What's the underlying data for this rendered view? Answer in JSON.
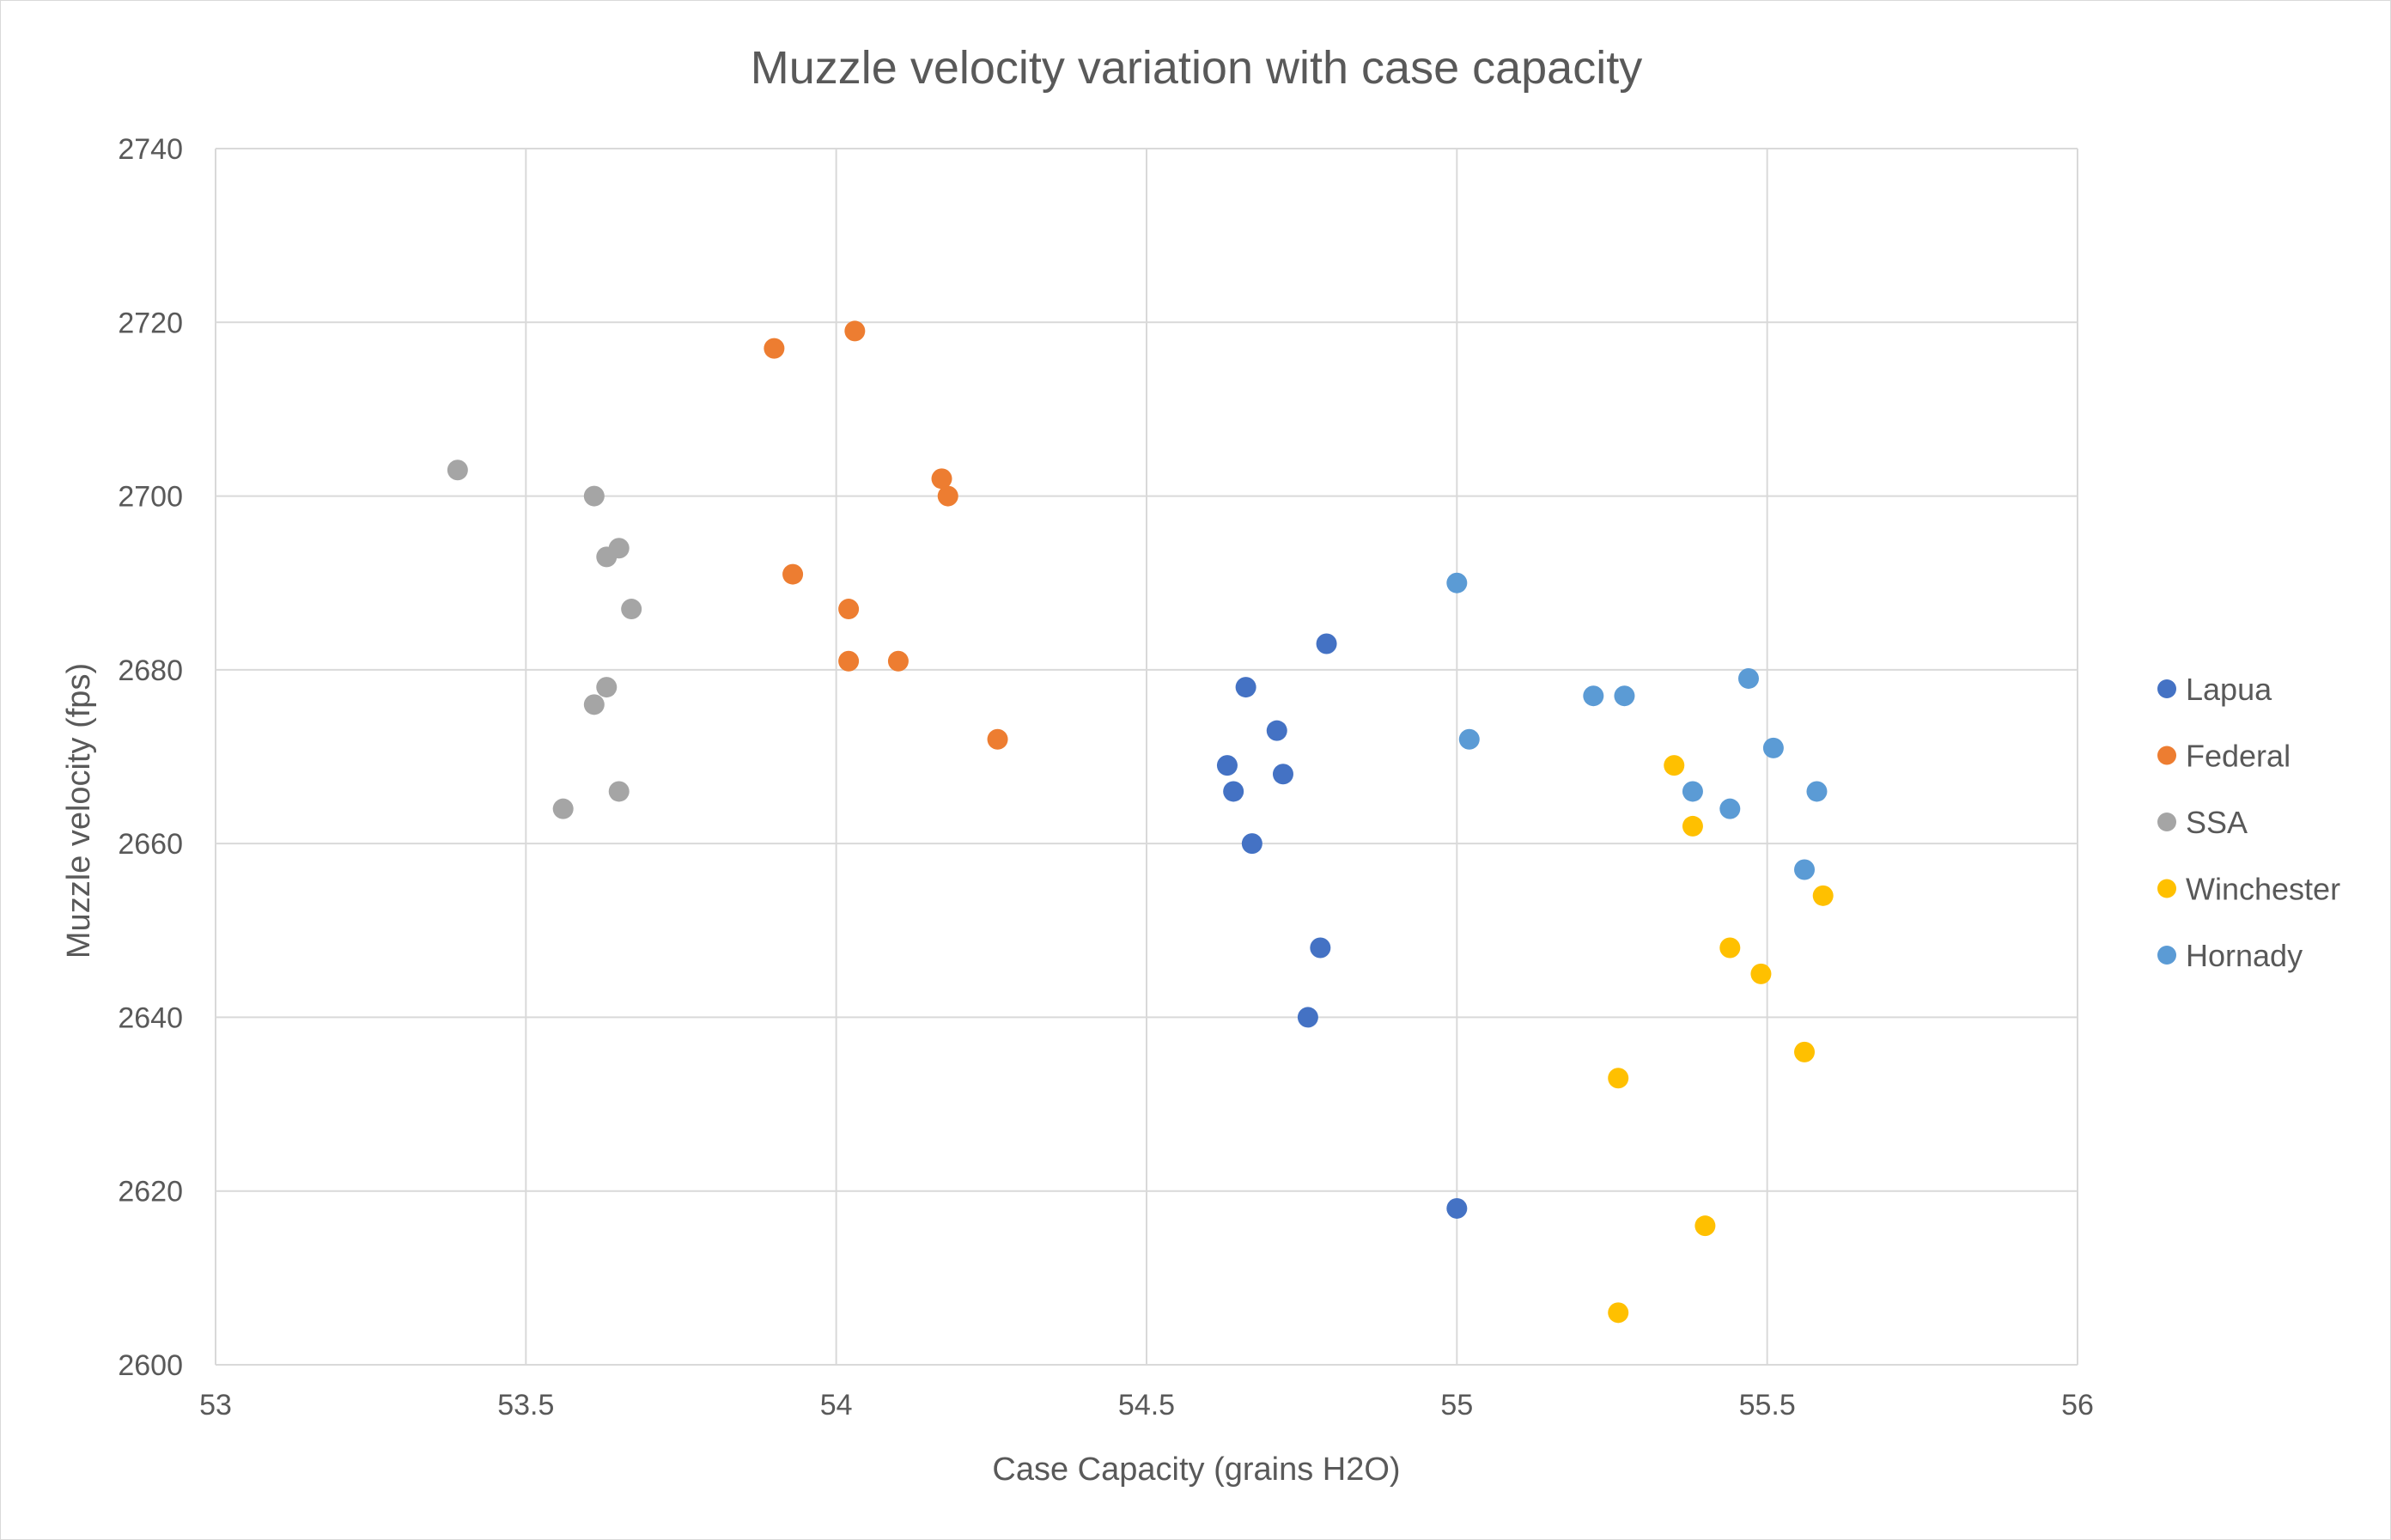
{
  "chart_data": {
    "type": "scatter",
    "title": "Muzzle velocity variation with case capacity",
    "xlabel": "Case Capacity (grains H2O)",
    "ylabel": "Muzzle velocity (fps)",
    "xlim": [
      53,
      56
    ],
    "ylim": [
      2600,
      2740
    ],
    "x_ticks": [
      "53",
      "53.5",
      "54",
      "54.5",
      "55",
      "55.5",
      "56"
    ],
    "y_ticks": [
      "2600",
      "2620",
      "2640",
      "2660",
      "2680",
      "2700",
      "2720",
      "2740"
    ],
    "grid": true,
    "legend_position": "right",
    "series": [
      {
        "name": "Lapua",
        "color": "#4472C4",
        "points": [
          [
            54.66,
            2678
          ],
          [
            54.79,
            2683
          ],
          [
            54.71,
            2673
          ],
          [
            54.63,
            2669
          ],
          [
            54.72,
            2668
          ],
          [
            54.64,
            2666
          ],
          [
            54.67,
            2660
          ],
          [
            54.78,
            2648
          ],
          [
            54.76,
            2640
          ],
          [
            55.0,
            2618
          ]
        ]
      },
      {
        "name": "Federal",
        "color": "#ED7D31",
        "points": [
          [
            53.9,
            2717
          ],
          [
            54.03,
            2719
          ],
          [
            54.17,
            2702
          ],
          [
            54.18,
            2700
          ],
          [
            53.93,
            2691
          ],
          [
            54.02,
            2687
          ],
          [
            54.02,
            2681
          ],
          [
            54.1,
            2681
          ],
          [
            54.26,
            2672
          ]
        ]
      },
      {
        "name": "SSA",
        "color": "#A5A5A5",
        "points": [
          [
            53.39,
            2703
          ],
          [
            53.61,
            2700
          ],
          [
            53.65,
            2694
          ],
          [
            53.63,
            2693
          ],
          [
            53.67,
            2687
          ],
          [
            53.63,
            2678
          ],
          [
            53.61,
            2676
          ],
          [
            53.65,
            2666
          ],
          [
            53.56,
            2664
          ]
        ]
      },
      {
        "name": "Winchester",
        "color": "#FFC000",
        "points": [
          [
            55.35,
            2669
          ],
          [
            55.38,
            2662
          ],
          [
            55.59,
            2654
          ],
          [
            55.44,
            2648
          ],
          [
            55.49,
            2645
          ],
          [
            55.56,
            2636
          ],
          [
            55.26,
            2633
          ],
          [
            55.4,
            2616
          ],
          [
            55.26,
            2606
          ]
        ]
      },
      {
        "name": "Hornady",
        "color": "#5B9BD5",
        "points": [
          [
            55.0,
            2690
          ],
          [
            55.47,
            2679
          ],
          [
            55.22,
            2677
          ],
          [
            55.27,
            2677
          ],
          [
            55.02,
            2672
          ],
          [
            55.51,
            2671
          ],
          [
            55.38,
            2666
          ],
          [
            55.58,
            2666
          ],
          [
            55.44,
            2664
          ],
          [
            55.56,
            2657
          ]
        ]
      }
    ]
  }
}
